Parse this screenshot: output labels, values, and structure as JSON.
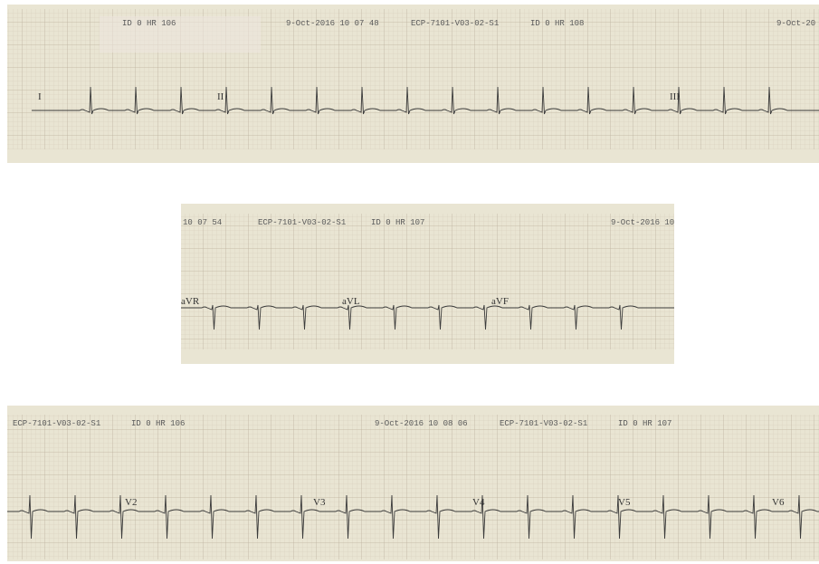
{
  "strips": [
    {
      "header": [
        "ID 0  HR 106",
        "9-Oct-2016 10 07 48",
        "ECP-7101-V03-02-S1",
        "ID 0  HR 108",
        "9-Oct-20"
      ],
      "leads": [
        "I",
        "II",
        "III"
      ]
    },
    {
      "header": [
        "10 07 54",
        "ECP-7101-V03-02-S1",
        "ID 0  HR 107",
        "9-Oct-2016 10"
      ],
      "leads": [
        "aVR",
        "aVL",
        "aVF"
      ]
    },
    {
      "header": [
        "ECP-7101-V03-02-S1",
        "ID 0  HR 106",
        "9-Oct-2016 10 08 06",
        "ECP-7101-V03-02-S1",
        "ID 0  HR 107"
      ],
      "leads": [
        "V2",
        "V3",
        "V4",
        "V5",
        "V6"
      ]
    }
  ]
}
